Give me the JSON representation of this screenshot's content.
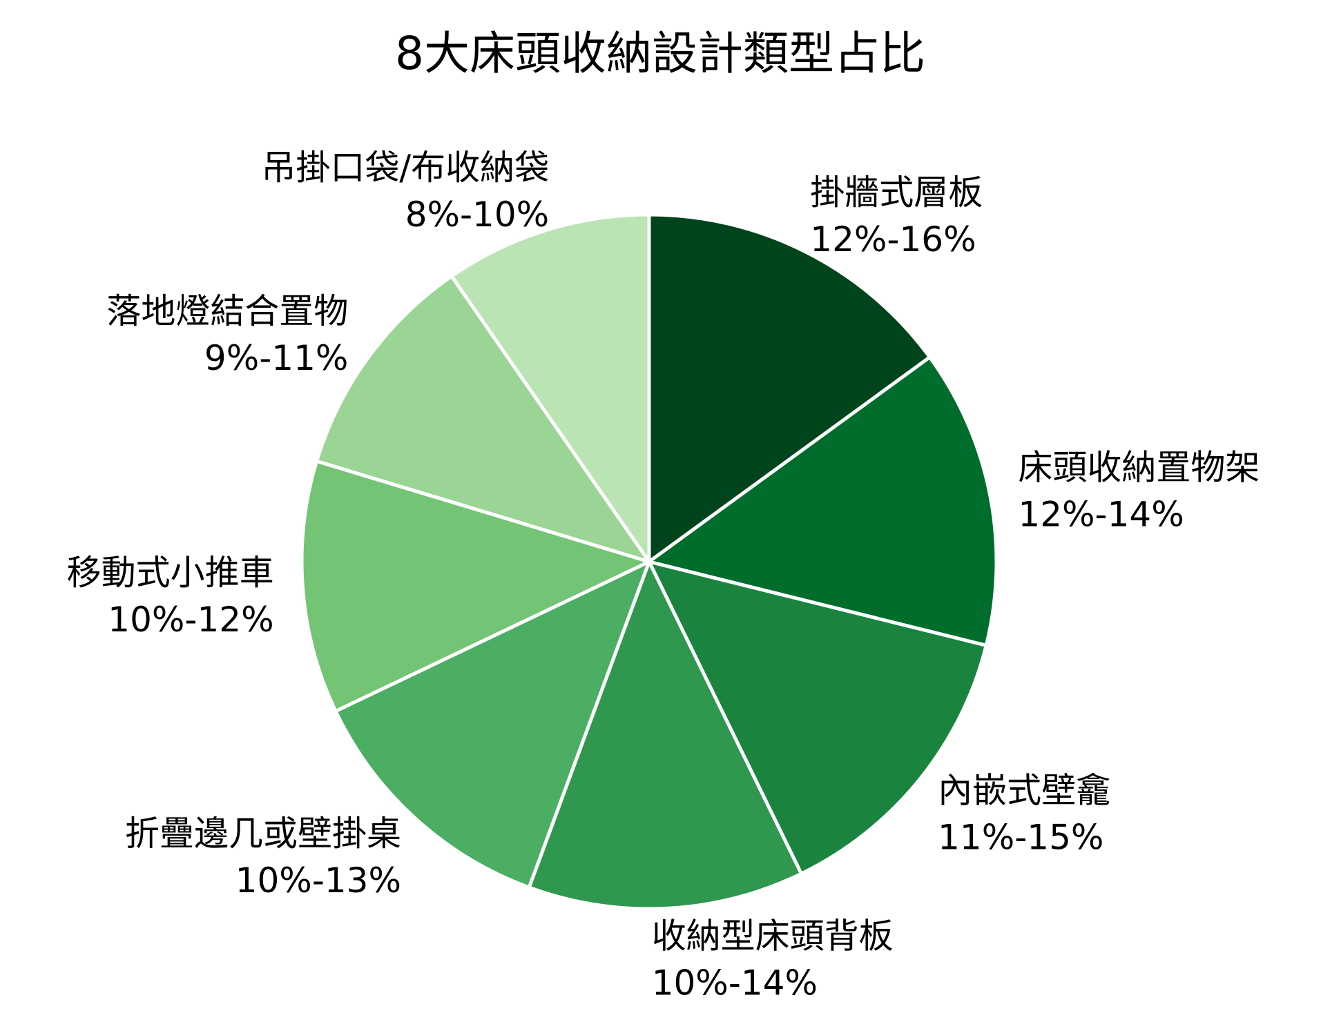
{
  "chart_data": {
    "type": "pie",
    "title": "8大床頭收納設計類型占比",
    "slices": [
      {
        "label": "掛牆式層板",
        "range": "12%-16%",
        "value": 14,
        "color": "#00441b"
      },
      {
        "label": "床頭收納置物架",
        "range": "12%-14%",
        "value": 13,
        "color": "#006d2c"
      },
      {
        "label": "內嵌式壁龕",
        "range": "11%-15%",
        "value": 13,
        "color": "#1a843f"
      },
      {
        "label": "收納型床頭背板",
        "range": "10%-14%",
        "value": 12,
        "color": "#2f974e"
      },
      {
        "label": "折疊邊几或壁掛桌",
        "range": "10%-13%",
        "value": 11.5,
        "color": "#4bae63"
      },
      {
        "label": "移動式小推車",
        "range": "10%-12%",
        "value": 11,
        "color": "#74c476"
      },
      {
        "label": "落地燈結合置物",
        "range": "9%-11%",
        "value": 10,
        "color": "#9bd595"
      },
      {
        "label": "吊掛口袋/布收納袋",
        "range": "8%-10%",
        "value": 9,
        "color": "#bae4b3"
      }
    ],
    "start": "top",
    "direction": "clockwise",
    "legend": "none",
    "label_placement": "outside"
  }
}
